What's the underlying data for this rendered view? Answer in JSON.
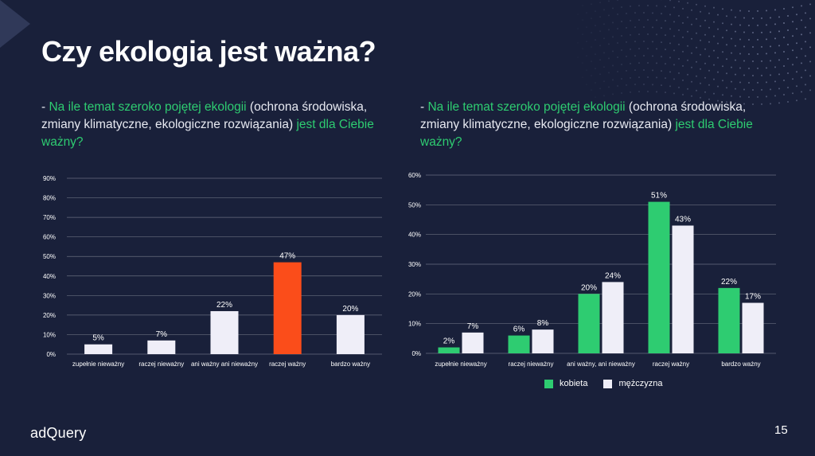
{
  "slide": {
    "title": "Czy ekologia jest ważna?",
    "logo": "adQuery",
    "page_number": "15"
  },
  "questions": [
    {
      "prefix": "- ",
      "hl1": "Na ile temat szeroko pojętej ekologii",
      "mid": " (ochrona środowiska, zmiany klimatyczne, ekologiczne rozwiązania) ",
      "hl2": "jest dla Ciebie ważny?"
    },
    {
      "prefix": "- ",
      "hl1": "Na ile temat szeroko pojętej ekologii",
      "mid": " (ochrona środowiska, zmiany klimatyczne, ekologiczne rozwiązania) ",
      "hl2": "jest dla Ciebie ważny?"
    }
  ],
  "colors": {
    "white_bar": "#efeef8",
    "highlight_bar": "#fb4d1a",
    "green": "#2ecc71",
    "accent_text": "#2ecc71",
    "gridline": "#ffffff"
  },
  "chart_data": [
    {
      "type": "bar",
      "categories": [
        "zupełnie nieważny",
        "raczej nieważny",
        "ani ważny ani nieważny",
        "raczej ważny",
        "bardzo ważny"
      ],
      "values": [
        5,
        7,
        22,
        47,
        20
      ],
      "data_labels": [
        "5%",
        "7%",
        "22%",
        "47%",
        "20%"
      ],
      "highlight_index": 3,
      "ylim": [
        0,
        90
      ],
      "yticks": [
        "0%",
        "10%",
        "20%",
        "30%",
        "40%",
        "50%",
        "60%",
        "70%",
        "80%",
        "90%"
      ],
      "grid": true
    },
    {
      "type": "bar",
      "categories": [
        "zupełnie nieważny",
        "raczej nieważny",
        "ani ważny, ani nieważny",
        "raczej ważny",
        "bardzo ważny"
      ],
      "series": [
        {
          "name": "kobieta",
          "values": [
            2,
            6,
            20,
            51,
            22
          ],
          "data_labels": [
            "2%",
            "6%",
            "20%",
            "51%",
            "22%"
          ],
          "color": "#2ecc71"
        },
        {
          "name": "mężczyzna",
          "values": [
            7,
            8,
            24,
            43,
            17
          ],
          "data_labels": [
            "7%",
            "8%",
            "24%",
            "43%",
            "17%"
          ],
          "color": "#efeef8"
        }
      ],
      "ylim": [
        0,
        60
      ],
      "yticks": [
        "0%",
        "10%",
        "20%",
        "30%",
        "40%",
        "50%",
        "60%"
      ],
      "grid": true,
      "legend": "bottom"
    }
  ]
}
